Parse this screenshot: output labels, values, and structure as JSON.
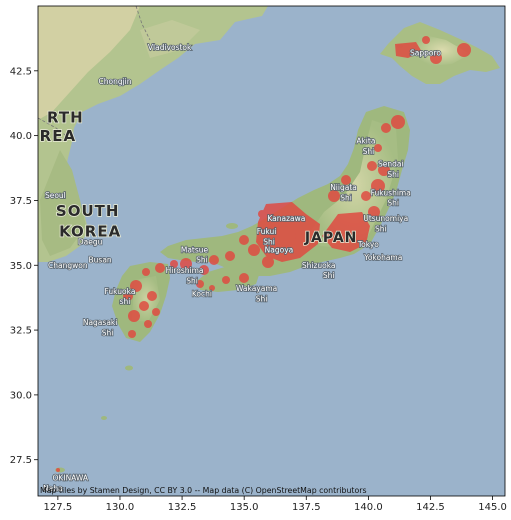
{
  "chart_data": {
    "type": "map",
    "x_ticks": [
      127.5,
      130.0,
      132.5,
      135.0,
      137.5,
      140.0,
      142.5,
      145.0
    ],
    "y_ticks": [
      27.5,
      30.0,
      32.5,
      35.0,
      37.5,
      40.0,
      42.5
    ],
    "xlim": [
      126.7,
      145.5
    ],
    "ylim": [
      26.1,
      45.0
    ],
    "attribution": "Map tiles by Stamen Design, CC BY 3.0 -- Map data (C) OpenStreetMap contributors",
    "country_labels": [
      {
        "text": "JAPAN",
        "lon": 138.5,
        "lat": 35.9
      },
      {
        "text": "SOUTH",
        "lon": 128.7,
        "lat": 36.9
      },
      {
        "text": "KOREA",
        "lon": 128.8,
        "lat": 36.1
      },
      {
        "text": "RTH",
        "lon": 127.8,
        "lat": 40.5
      },
      {
        "text": "REA",
        "lon": 127.5,
        "lat": 39.8
      }
    ],
    "place_labels": [
      {
        "text": "Sapporo",
        "lon": 142.3,
        "lat": 43.1
      },
      {
        "text": "Sendai",
        "lon": 140.9,
        "lat": 38.8
      },
      {
        "text": "Shi",
        "lon": 141.0,
        "lat": 38.4
      },
      {
        "text": "Akita",
        "lon": 139.9,
        "lat": 39.7
      },
      {
        "text": "Shi",
        "lon": 140.0,
        "lat": 39.3
      },
      {
        "text": "Niigata",
        "lon": 139.0,
        "lat": 37.9
      },
      {
        "text": "Shi",
        "lon": 139.1,
        "lat": 37.5
      },
      {
        "text": "Fukushima",
        "lon": 140.9,
        "lat": 37.7
      },
      {
        "text": "Shi",
        "lon": 141.0,
        "lat": 37.3
      },
      {
        "text": "Utsunomiya",
        "lon": 140.7,
        "lat": 36.7
      },
      {
        "text": "Shi",
        "lon": 140.5,
        "lat": 36.3
      },
      {
        "text": "Tokyo",
        "lon": 140.0,
        "lat": 35.7
      },
      {
        "text": "Yokohama",
        "lon": 140.6,
        "lat": 35.2
      },
      {
        "text": "Kanazawa",
        "lon": 136.7,
        "lat": 36.7
      },
      {
        "text": "Fukui",
        "lon": 135.9,
        "lat": 36.2
      },
      {
        "text": "Shi",
        "lon": 136.0,
        "lat": 35.8
      },
      {
        "text": "Nagoya",
        "lon": 136.4,
        "lat": 35.5
      },
      {
        "text": "Shizuoka",
        "lon": 138.0,
        "lat": 34.9
      },
      {
        "text": "Shi",
        "lon": 138.4,
        "lat": 34.5
      },
      {
        "text": "Wakayama",
        "lon": 135.5,
        "lat": 34.0
      },
      {
        "text": "Shi",
        "lon": 135.7,
        "lat": 33.6
      },
      {
        "text": "Matsue",
        "lon": 133.0,
        "lat": 35.5
      },
      {
        "text": "Shi",
        "lon": 133.3,
        "lat": 35.1
      },
      {
        "text": "Hiroshima",
        "lon": 132.6,
        "lat": 34.7
      },
      {
        "text": "Shi",
        "lon": 132.9,
        "lat": 34.3
      },
      {
        "text": "Kochi",
        "lon": 133.3,
        "lat": 33.8
      },
      {
        "text": "Fukuoka",
        "lon": 130.0,
        "lat": 33.9
      },
      {
        "text": "shi",
        "lon": 130.2,
        "lat": 33.5
      },
      {
        "text": "Nagasaki",
        "lon": 129.2,
        "lat": 32.7
      },
      {
        "text": "Shi",
        "lon": 129.5,
        "lat": 32.3
      },
      {
        "text": "Daegu",
        "lon": 128.8,
        "lat": 35.8
      },
      {
        "text": "Busan",
        "lon": 129.2,
        "lat": 35.1
      },
      {
        "text": "Seoul",
        "lon": 127.4,
        "lat": 37.6
      },
      {
        "text": "Changwon",
        "lon": 127.9,
        "lat": 34.9
      },
      {
        "text": "Vladivostok",
        "lon": 132.0,
        "lat": 43.3
      },
      {
        "text": "Chongjin",
        "lon": 129.8,
        "lat": 42.0
      },
      {
        "text": "Naha",
        "lon": 127.3,
        "lat": 26.3
      },
      {
        "text": "OKINAWA",
        "lon": 128.0,
        "lat": 26.7
      }
    ]
  }
}
